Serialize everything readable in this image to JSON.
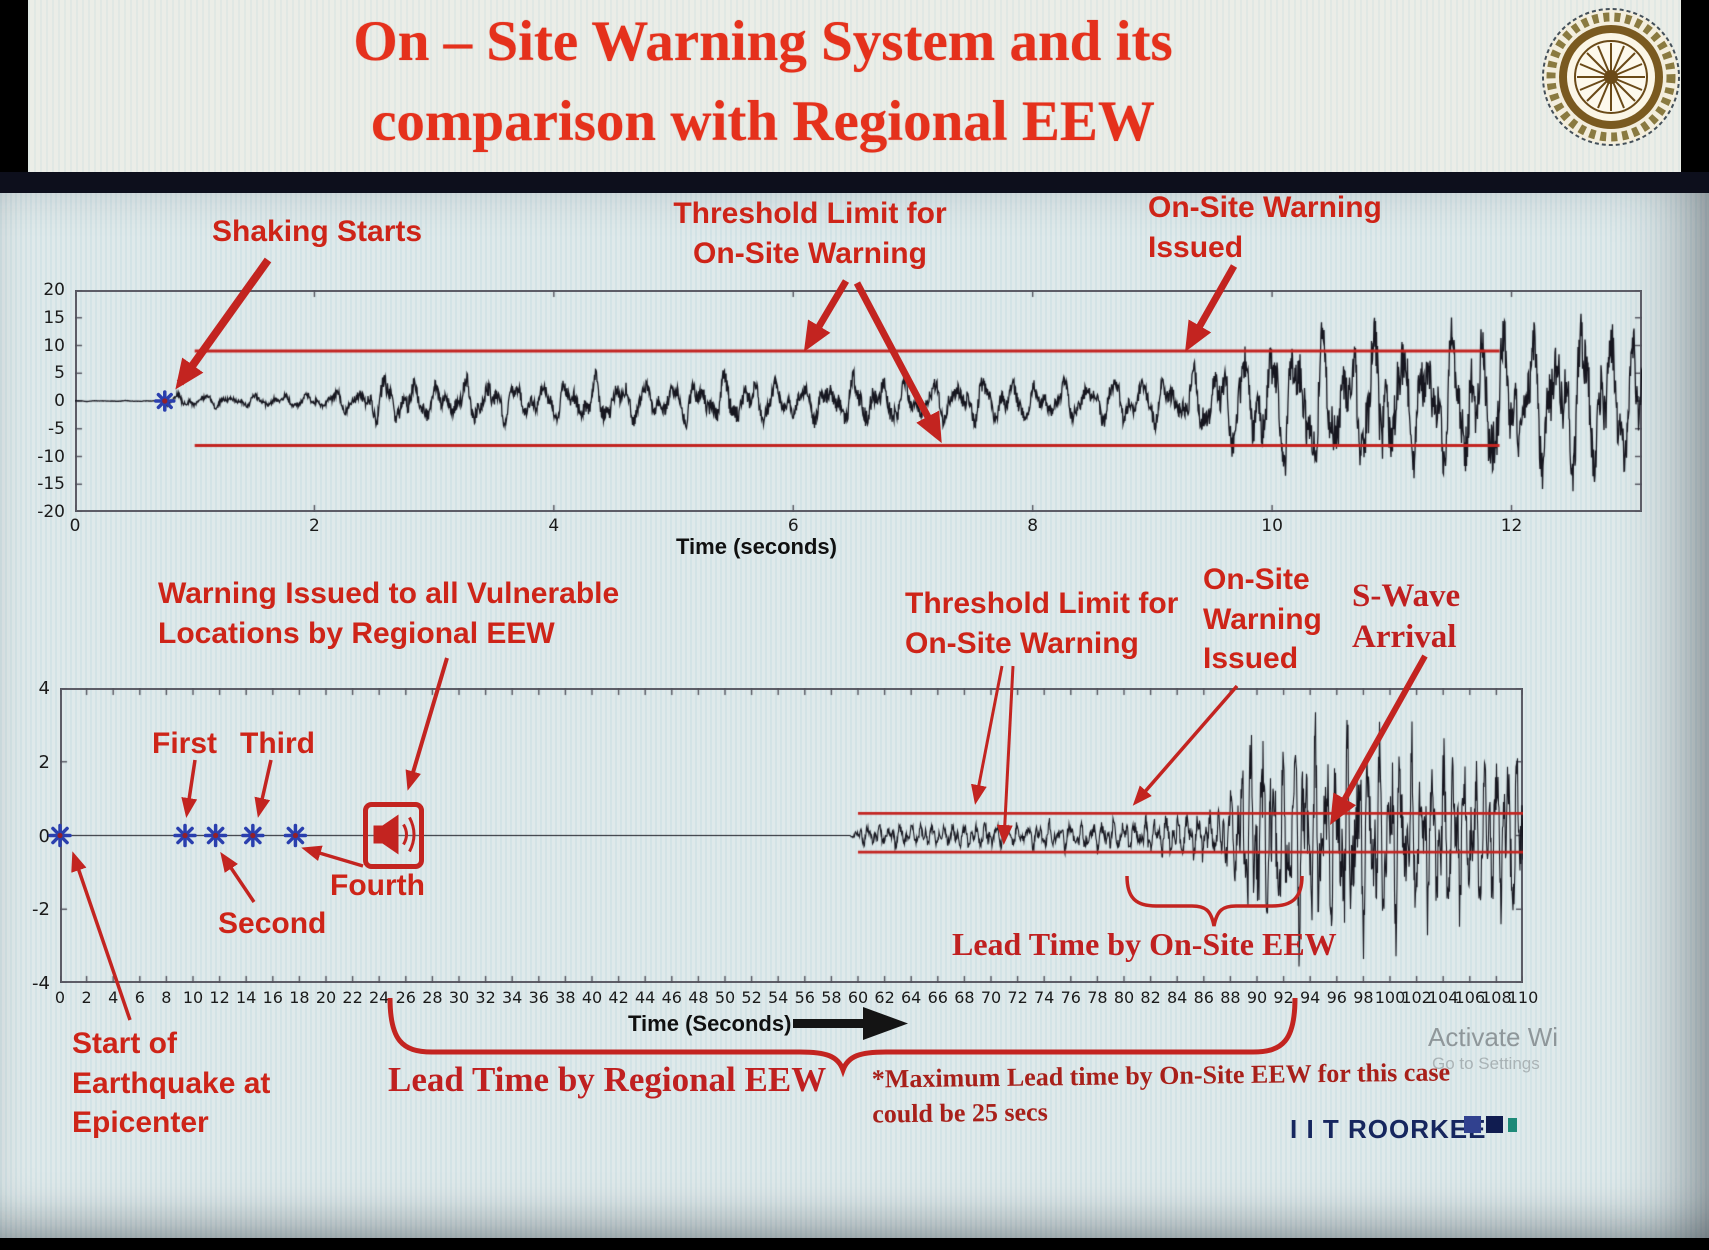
{
  "slide": {
    "title_line1": "On – Site Warning System and its",
    "title_line2": "comparison with Regional EEW",
    "logo_alt": "IIT Roorkee seal",
    "footer_brand": "I I T ROORKEE",
    "watermark_line1": "Activate Wi",
    "watermark_line2": "Go to Settings",
    "title_color": "#e5311c",
    "accent_color": "#c32420",
    "brand_color": "#16265e"
  },
  "chart_data": [
    {
      "type": "line",
      "name": "onsite-warning-seismogram",
      "title": "",
      "xlabel": "Time (seconds)",
      "ylabel": "",
      "xlim": [
        0,
        13.09
      ],
      "ylim": [
        -20,
        20
      ],
      "x_ticks": [
        0,
        2,
        4,
        6,
        8,
        10,
        12
      ],
      "y_ticks": [
        20,
        15,
        10,
        5,
        0,
        -5,
        -10,
        -15,
        -20
      ],
      "grid": false,
      "trace_color": "#16161f",
      "thresholds": {
        "upper": 9,
        "lower": -8,
        "x_start": 1.0,
        "x_end": 11.9,
        "color": "#c32420"
      },
      "events": {
        "shaking_starts_t": 0.75,
        "onsite_warning_issued_t": 9.25
      },
      "waveform": {
        "seed": 12,
        "freqs": [
          4.6,
          7.4,
          11.2
        ],
        "weights": [
          0.55,
          0.3,
          0.25
        ],
        "noise": 0.35,
        "envelope": [
          [
            0,
            0.07
          ],
          [
            0.7,
            0.09
          ],
          [
            0.78,
            1.3
          ],
          [
            1.3,
            1.0
          ],
          [
            2.0,
            1.4
          ],
          [
            2.35,
            2.2
          ],
          [
            2.6,
            4.6
          ],
          [
            3.0,
            3.0
          ],
          [
            3.4,
            4.4
          ],
          [
            3.8,
            2.8
          ],
          [
            4.3,
            4.3
          ],
          [
            4.9,
            3.3
          ],
          [
            5.5,
            4.5
          ],
          [
            6.1,
            3.3
          ],
          [
            6.6,
            4.7
          ],
          [
            7.1,
            3.4
          ],
          [
            7.6,
            4.3
          ],
          [
            8.1,
            3.1
          ],
          [
            8.7,
            4.5
          ],
          [
            9.1,
            4.0
          ],
          [
            9.4,
            5.5
          ],
          [
            9.7,
            8.5
          ],
          [
            10.0,
            11.5
          ],
          [
            10.3,
            13.5
          ],
          [
            10.6,
            10.5
          ],
          [
            10.9,
            14.5
          ],
          [
            11.3,
            11.5
          ],
          [
            11.7,
            13.8
          ],
          [
            12.1,
            12.5
          ],
          [
            12.6,
            14.5
          ],
          [
            13.09,
            13.0
          ]
        ]
      },
      "annotations": {
        "shaking_starts": "Shaking Starts",
        "threshold_limit": "Threshold Limit for\nOn-Site Warning",
        "warning_issued": "On-Site Warning\nIssued"
      }
    },
    {
      "type": "line",
      "name": "regional-vs-onsite-seismogram",
      "title": "",
      "xlabel": "Time (Seconds)",
      "ylabel": "",
      "xlim": [
        0,
        110
      ],
      "ylim": [
        -4,
        4
      ],
      "x_ticks": [
        0,
        2,
        4,
        6,
        8,
        10,
        12,
        14,
        16,
        18,
        20,
        22,
        24,
        26,
        28,
        30,
        32,
        34,
        36,
        38,
        40,
        42,
        44,
        46,
        48,
        50,
        52,
        54,
        56,
        58,
        60,
        62,
        64,
        66,
        68,
        70,
        72,
        74,
        76,
        78,
        80,
        82,
        84,
        86,
        88,
        90,
        92,
        94,
        96,
        98,
        100,
        102,
        104,
        106,
        108,
        110
      ],
      "y_ticks": [
        4,
        2,
        0,
        -2,
        -4
      ],
      "grid": false,
      "trace_color": "#16161f",
      "thresholds": {
        "upper": 0.6,
        "lower": -0.45,
        "x_start": 60,
        "x_end": 110,
        "color": "#c32420"
      },
      "events": {
        "epicenter_t": 0,
        "p_detections": [
          {
            "label": "First",
            "t": 9.4
          },
          {
            "label": "Second",
            "t": 11.7
          },
          {
            "label": "Third",
            "t": 14.5
          },
          {
            "label": "Fourth",
            "t": 17.7
          }
        ],
        "regional_warning_t": 25,
        "onsite_warning_issued_t": 80,
        "s_wave_arrival_t": 93,
        "max_onsite_lead_time_secs": 25
      },
      "waveform": {
        "seed": 99,
        "freqs": [
          1.25,
          2.05,
          2.9
        ],
        "weights": [
          0.55,
          0.35,
          0.25
        ],
        "noise": 0.4,
        "envelope": [
          [
            0,
            0
          ],
          [
            59.4,
            0
          ],
          [
            59.8,
            0.22
          ],
          [
            63,
            0.3
          ],
          [
            66,
            0.26
          ],
          [
            69,
            0.33
          ],
          [
            72,
            0.27
          ],
          [
            75,
            0.33
          ],
          [
            78,
            0.38
          ],
          [
            80,
            0.42
          ],
          [
            83,
            0.5
          ],
          [
            86,
            0.6
          ],
          [
            87.5,
            0.8
          ],
          [
            88.5,
            1.6
          ],
          [
            89.5,
            2.5
          ],
          [
            90.5,
            2.6
          ],
          [
            92,
            2.0
          ],
          [
            93.5,
            2.5
          ],
          [
            95,
            2.2
          ],
          [
            97,
            2.6
          ],
          [
            99,
            2.1
          ],
          [
            101,
            2.4
          ],
          [
            103,
            2.0
          ],
          [
            105,
            2.3
          ],
          [
            107,
            1.8
          ],
          [
            109,
            2.1
          ],
          [
            110,
            1.9
          ]
        ]
      },
      "annotations": {
        "regional_warning": "Warning Issued to all Vulnerable\nLocations by Regional EEW",
        "first": "First",
        "second": "Second",
        "third": "Third",
        "fourth": "Fourth",
        "epicenter": "Start of\nEarthquake at\nEpicenter",
        "threshold_limit": "Threshold Limit for\nOn-Site Warning",
        "warning_issued": "On-Site\nWarning\nIssued",
        "s_wave": "S-Wave\nArrival",
        "lead_time_onsite": "Lead Time by On-Site EEW",
        "lead_time_regional": "Lead Time by Regional EEW",
        "max_lead_note": "*Maximum Lead time by On-Site EEW for this case\ncould be 25 secs"
      }
    }
  ]
}
